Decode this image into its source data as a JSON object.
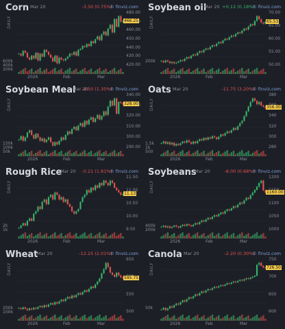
{
  "source": "finviz.com",
  "colors": {
    "up": "#35b56b",
    "down": "#e0534f",
    "last_tag": "#f2c94c",
    "bg": "#1d1f27"
  },
  "panels": [
    {
      "title": "Corn",
      "date": "Mar 20",
      "change": "-3.50 (0.75%)",
      "direction": "down",
      "last": "466.25",
      "yticks": [
        "480.00",
        "470.00",
        "460.00",
        "450.00",
        "440.00",
        "430.00",
        "420.00"
      ],
      "vticks": [
        "600k",
        "400k",
        "200k"
      ],
      "xticks": [
        "2026",
        "Feb",
        "Mar"
      ],
      "axis": "DAILY",
      "series": [
        432,
        430,
        435,
        433,
        428,
        426,
        430,
        427,
        433,
        425,
        432,
        429,
        436,
        434,
        431,
        428,
        424,
        430,
        422,
        428,
        426,
        425,
        427,
        429,
        432,
        431,
        434,
        430,
        436,
        437,
        440,
        439,
        442,
        440,
        445,
        443,
        447,
        450,
        446,
        452,
        455,
        451,
        458,
        462,
        454,
        468,
        460,
        471,
        465,
        466
      ]
    },
    {
      "title": "Soybean oil",
      "date": "Mar 20",
      "change": "+0.12 (0.18%)",
      "direction": "up",
      "last": "65.53",
      "yticks": [
        "70.00",
        "65.00",
        "60.00",
        "55.00",
        "50.00"
      ],
      "vticks": [
        "200k"
      ],
      "xticks": [
        "2026",
        "Feb",
        "Mar"
      ],
      "axis": "DAILY",
      "series": [
        51,
        50.5,
        51.2,
        50.8,
        50.2,
        50.6,
        50.1,
        50.4,
        50.8,
        51.3,
        51.0,
        51.8,
        52.4,
        52.0,
        52.9,
        53.4,
        53.1,
        54.0,
        54.6,
        54.2,
        55.1,
        55.6,
        55.3,
        56.2,
        56.8,
        56.5,
        57.4,
        58.0,
        57.6,
        58.6,
        59.2,
        58.9,
        59.8,
        60.4,
        60.1,
        61.0,
        61.6,
        61.3,
        62.2,
        63.0,
        62.6,
        63.8,
        64.6,
        64.2,
        65.8,
        67.6,
        66.4,
        65.2,
        64.8,
        65.5
      ]
    },
    {
      "title": "Soybean Meal",
      "date": "Mar 20",
      "change": "-4.50 (1.35%)",
      "direction": "down",
      "last": "328.00",
      "yticks": [
        "340.00",
        "330.00",
        "320.00",
        "310.00",
        "300.00",
        "290.00"
      ],
      "vticks": [
        "150k",
        "100k",
        "50k"
      ],
      "xticks": [
        "2026",
        "Feb",
        "Mar"
      ],
      "axis": "DAILY",
      "series": [
        298,
        301,
        297,
        300,
        304,
        306,
        302,
        299,
        303,
        300,
        297,
        299,
        296,
        298,
        300,
        296,
        293,
        296,
        294,
        297,
        300,
        298,
        302,
        305,
        303,
        307,
        309,
        306,
        310,
        312,
        309,
        314,
        311,
        315,
        317,
        313,
        316,
        319,
        315,
        318,
        322,
        319,
        326,
        331,
        327,
        333,
        320,
        330,
        329,
        328
      ]
    },
    {
      "title": "Oats",
      "date": "Mar 20",
      "change": "-11.75 (3.20%)",
      "direction": "down",
      "last": "356.00",
      "yticks": [
        "380",
        "360",
        "340",
        "320",
        "300",
        "280"
      ],
      "vticks": [
        "1.5k",
        "1k",
        "500"
      ],
      "xticks": [
        "2026",
        "Feb",
        "Mar"
      ],
      "axis": "DAILY",
      "series": [
        296,
        299,
        295,
        298,
        294,
        297,
        292,
        295,
        293,
        296,
        299,
        297,
        301,
        298,
        295,
        299,
        296,
        300,
        303,
        301,
        305,
        302,
        306,
        304,
        308,
        306,
        303,
        307,
        311,
        309,
        313,
        316,
        314,
        318,
        322,
        319,
        325,
        330,
        334,
        342,
        350,
        358,
        366,
        372,
        368,
        362,
        366,
        360,
        358,
        356
      ]
    },
    {
      "title": "Rough Rice",
      "date": "Mar 20",
      "change": "-0.21 (1.81%)",
      "direction": "down",
      "last": "11.13",
      "yticks": [
        "11.50",
        "11.00",
        "10.50",
        "10.00",
        "9.50"
      ],
      "vticks": [
        "2k",
        "1k"
      ],
      "xticks": [
        "2026",
        "Feb",
        "Mar"
      ],
      "axis": "DAILY",
      "series": [
        9.7,
        9.8,
        9.9,
        9.8,
        10.0,
        10.1,
        10.0,
        10.3,
        10.4,
        10.6,
        10.5,
        10.8,
        10.9,
        10.7,
        11.0,
        11.1,
        10.9,
        11.2,
        11.1,
        10.9,
        11.0,
        10.8,
        10.9,
        10.7,
        10.6,
        10.4,
        10.3,
        10.4,
        10.5,
        10.8,
        11.0,
        11.1,
        11.3,
        11.2,
        11.4,
        11.3,
        11.5,
        11.4,
        11.6,
        11.5,
        11.7,
        11.6,
        11.5,
        11.7,
        11.6,
        11.4,
        11.3,
        11.2,
        11.1,
        11.13
      ]
    },
    {
      "title": "Soybeans",
      "date": "Mar 20",
      "change": "-8.00 (0.68%)",
      "direction": "down",
      "last": "1160.00",
      "yticks": [
        "1200",
        "1150",
        "1100",
        "1050",
        "1000"
      ],
      "vticks": [
        "400k",
        "200k"
      ],
      "xticks": [
        "2026",
        "Feb",
        "Mar"
      ],
      "axis": "DAILY",
      "series": [
        1030,
        1034,
        1028,
        1032,
        1026,
        1030,
        1035,
        1031,
        1027,
        1033,
        1038,
        1034,
        1040,
        1036,
        1032,
        1038,
        1044,
        1040,
        1048,
        1054,
        1050,
        1058,
        1064,
        1060,
        1068,
        1074,
        1070,
        1078,
        1084,
        1080,
        1090,
        1096,
        1092,
        1100,
        1108,
        1104,
        1114,
        1122,
        1118,
        1130,
        1140,
        1136,
        1150,
        1160,
        1170,
        1182,
        1196,
        1205,
        1168,
        1160
      ]
    },
    {
      "title": "Wheat",
      "date": "Mar 20",
      "change": "-12.25 (2.01%)",
      "direction": "down",
      "last": "595.75",
      "yticks": [
        "650",
        "600",
        "550",
        "500"
      ],
      "vticks": [
        "200k",
        "100k"
      ],
      "xticks": [
        "2026",
        "Feb",
        "Mar"
      ],
      "axis": "DAILY",
      "series": [
        510,
        507,
        512,
        508,
        504,
        509,
        506,
        511,
        508,
        513,
        516,
        512,
        518,
        514,
        520,
        524,
        520,
        527,
        523,
        529,
        534,
        530,
        537,
        542,
        538,
        546,
        541,
        548,
        553,
        549,
        556,
        561,
        557,
        565,
        572,
        568,
        578,
        586,
        595,
        610,
        622,
        640,
        628,
        612,
        606,
        600,
        612,
        604,
        598,
        596
      ]
    },
    {
      "title": "Canola",
      "date": "Mar 20",
      "change": "-2.20 (0.30%)",
      "direction": "down",
      "last": "726.50",
      "yticks": [
        "750",
        "700",
        "650",
        "600"
      ],
      "vticks": [
        "50k"
      ],
      "xticks": [
        "2026",
        "Feb",
        "Mar"
      ],
      "axis": "DAILY",
      "series": [
        600,
        605,
        598,
        603,
        610,
        606,
        613,
        618,
        615,
        622,
        628,
        624,
        631,
        637,
        634,
        640,
        646,
        643,
        650,
        655,
        652,
        658,
        662,
        660,
        665,
        669,
        667,
        671,
        674,
        672,
        676,
        680,
        678,
        682,
        685,
        683,
        687,
        690,
        688,
        692,
        695,
        693,
        697,
        700,
        703,
        736,
        742,
        733,
        728,
        726
      ]
    }
  ]
}
